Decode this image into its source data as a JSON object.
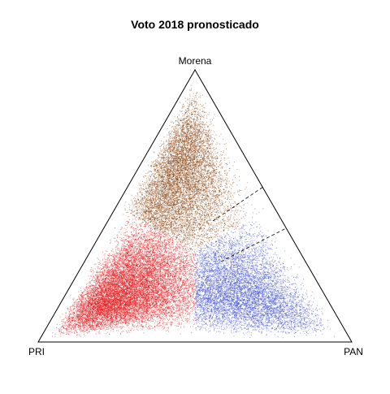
{
  "chart_data": {
    "type": "scatter",
    "subtype": "ternary",
    "title": "Voto 2018 pronosticado",
    "vertices": {
      "top": "Morena",
      "left": "PRI",
      "right": "PAN"
    },
    "series": [
      {
        "name": "Morena",
        "color": "#8B4513",
        "region": "Morena share largest",
        "centroid_share": {
          "Morena": 0.55,
          "PRI": 0.28,
          "PAN": 0.17
        },
        "point_count": 9000
      },
      {
        "name": "PRI",
        "color": "#E41A1C",
        "region": "PRI share largest",
        "centroid_share": {
          "Morena": 0.2,
          "PRI": 0.6,
          "PAN": 0.2
        },
        "point_count": 14000
      },
      {
        "name": "PAN",
        "color": "#3F51C8",
        "region": "PAN share largest",
        "centroid_share": {
          "Morena": 0.2,
          "PRI": 0.3,
          "PAN": 0.5
        },
        "point_count": 8000
      }
    ],
    "region_boundaries": [
      {
        "between": [
          "Morena",
          "PRI"
        ],
        "style": "color boundary"
      },
      {
        "between": [
          "Morena",
          "PAN"
        ],
        "style": "color boundary"
      },
      {
        "between": [
          "PRI",
          "PAN"
        ],
        "style": "color boundary"
      }
    ],
    "guide_lines": [
      {
        "style": "dashed",
        "description": "upper dashed reference line"
      },
      {
        "style": "dashed",
        "description": "lower dashed reference line"
      }
    ],
    "grid": false,
    "legend": "none"
  }
}
